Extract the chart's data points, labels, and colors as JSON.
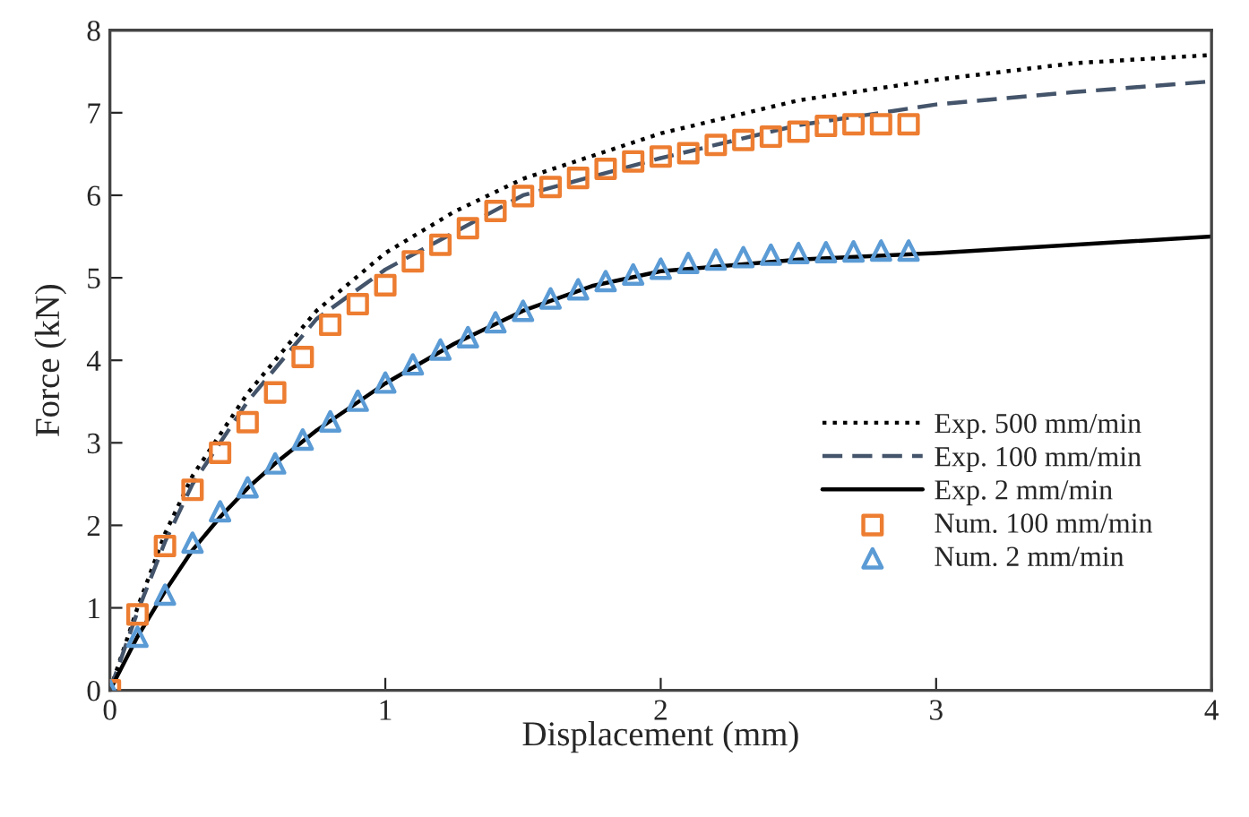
{
  "chart_data": {
    "type": "line",
    "xlabel": "Displacement (mm)",
    "ylabel": "Force (kN)",
    "xlim": [
      0,
      4
    ],
    "ylim": [
      0,
      8
    ],
    "xticks": [
      0,
      1,
      2,
      3,
      4
    ],
    "yticks": [
      0,
      1,
      2,
      3,
      4,
      5,
      6,
      7,
      8
    ],
    "grid": false,
    "legend": "right",
    "series": [
      {
        "name": "Exp. 500 mm/min",
        "line_style": "dotted",
        "marker": "none",
        "color": "#000000",
        "x": [
          0,
          0.1,
          0.2,
          0.3,
          0.5,
          0.75,
          1,
          1.25,
          1.5,
          2,
          2.5,
          3,
          3.5,
          4
        ],
        "values": [
          0,
          1.0,
          1.9,
          2.6,
          3.6,
          4.6,
          5.3,
          5.8,
          6.2,
          6.75,
          7.15,
          7.4,
          7.6,
          7.7
        ]
      },
      {
        "name": "Exp. 100 mm/min",
        "line_style": "dashed",
        "marker": "none",
        "color": "#44546a",
        "x": [
          0,
          0.1,
          0.2,
          0.3,
          0.5,
          0.75,
          1,
          1.5,
          2,
          2.5,
          3,
          3.5,
          4
        ],
        "values": [
          0,
          0.95,
          1.8,
          2.5,
          3.5,
          4.5,
          5.1,
          6.0,
          6.45,
          6.85,
          7.1,
          7.25,
          7.38
        ]
      },
      {
        "name": "Exp. 2 mm/min",
        "line_style": "solid",
        "marker": "none",
        "color": "#000000",
        "x": [
          0,
          0.1,
          0.2,
          0.3,
          0.4,
          0.5,
          0.6,
          0.75,
          1,
          1.25,
          1.5,
          1.75,
          2,
          2.5,
          3,
          3.5,
          4
        ],
        "values": [
          0,
          0.65,
          1.2,
          1.7,
          2.1,
          2.45,
          2.75,
          3.15,
          3.72,
          4.2,
          4.6,
          4.9,
          5.08,
          5.22,
          5.3,
          5.4,
          5.5
        ]
      },
      {
        "name": "Num. 100 mm/min",
        "type": "scatter",
        "marker": "square",
        "color": "#ed7d31",
        "x": [
          0,
          0.1,
          0.2,
          0.3,
          0.4,
          0.5,
          0.6,
          0.7,
          0.8,
          0.9,
          1.0,
          1.1,
          1.2,
          1.3,
          1.4,
          1.5,
          1.6,
          1.7,
          1.8,
          1.9,
          2.0,
          2.1,
          2.2,
          2.3,
          2.4,
          2.5,
          2.6,
          2.7,
          2.8,
          2.9
        ],
        "values": [
          0,
          0.92,
          1.75,
          2.43,
          2.88,
          3.25,
          3.61,
          4.04,
          4.43,
          4.68,
          4.91,
          5.2,
          5.4,
          5.6,
          5.81,
          5.99,
          6.1,
          6.21,
          6.32,
          6.41,
          6.47,
          6.51,
          6.61,
          6.67,
          6.71,
          6.77,
          6.84,
          6.86,
          6.86,
          6.86
        ]
      },
      {
        "name": "Num. 2 mm/min",
        "type": "scatter",
        "marker": "triangle",
        "color": "#5b9bd5",
        "x": [
          0,
          0.1,
          0.2,
          0.3,
          0.4,
          0.5,
          0.6,
          0.7,
          0.8,
          0.9,
          1.0,
          1.1,
          1.2,
          1.3,
          1.4,
          1.5,
          1.6,
          1.7,
          1.8,
          1.9,
          2.0,
          2.1,
          2.2,
          2.3,
          2.4,
          2.5,
          2.6,
          2.7,
          2.8,
          2.9
        ],
        "values": [
          0,
          0.65,
          1.16,
          1.79,
          2.17,
          2.46,
          2.75,
          3.04,
          3.26,
          3.51,
          3.73,
          3.95,
          4.13,
          4.28,
          4.46,
          4.6,
          4.75,
          4.86,
          4.96,
          5.04,
          5.11,
          5.18,
          5.22,
          5.25,
          5.28,
          5.3,
          5.31,
          5.32,
          5.33,
          5.33
        ]
      }
    ]
  }
}
